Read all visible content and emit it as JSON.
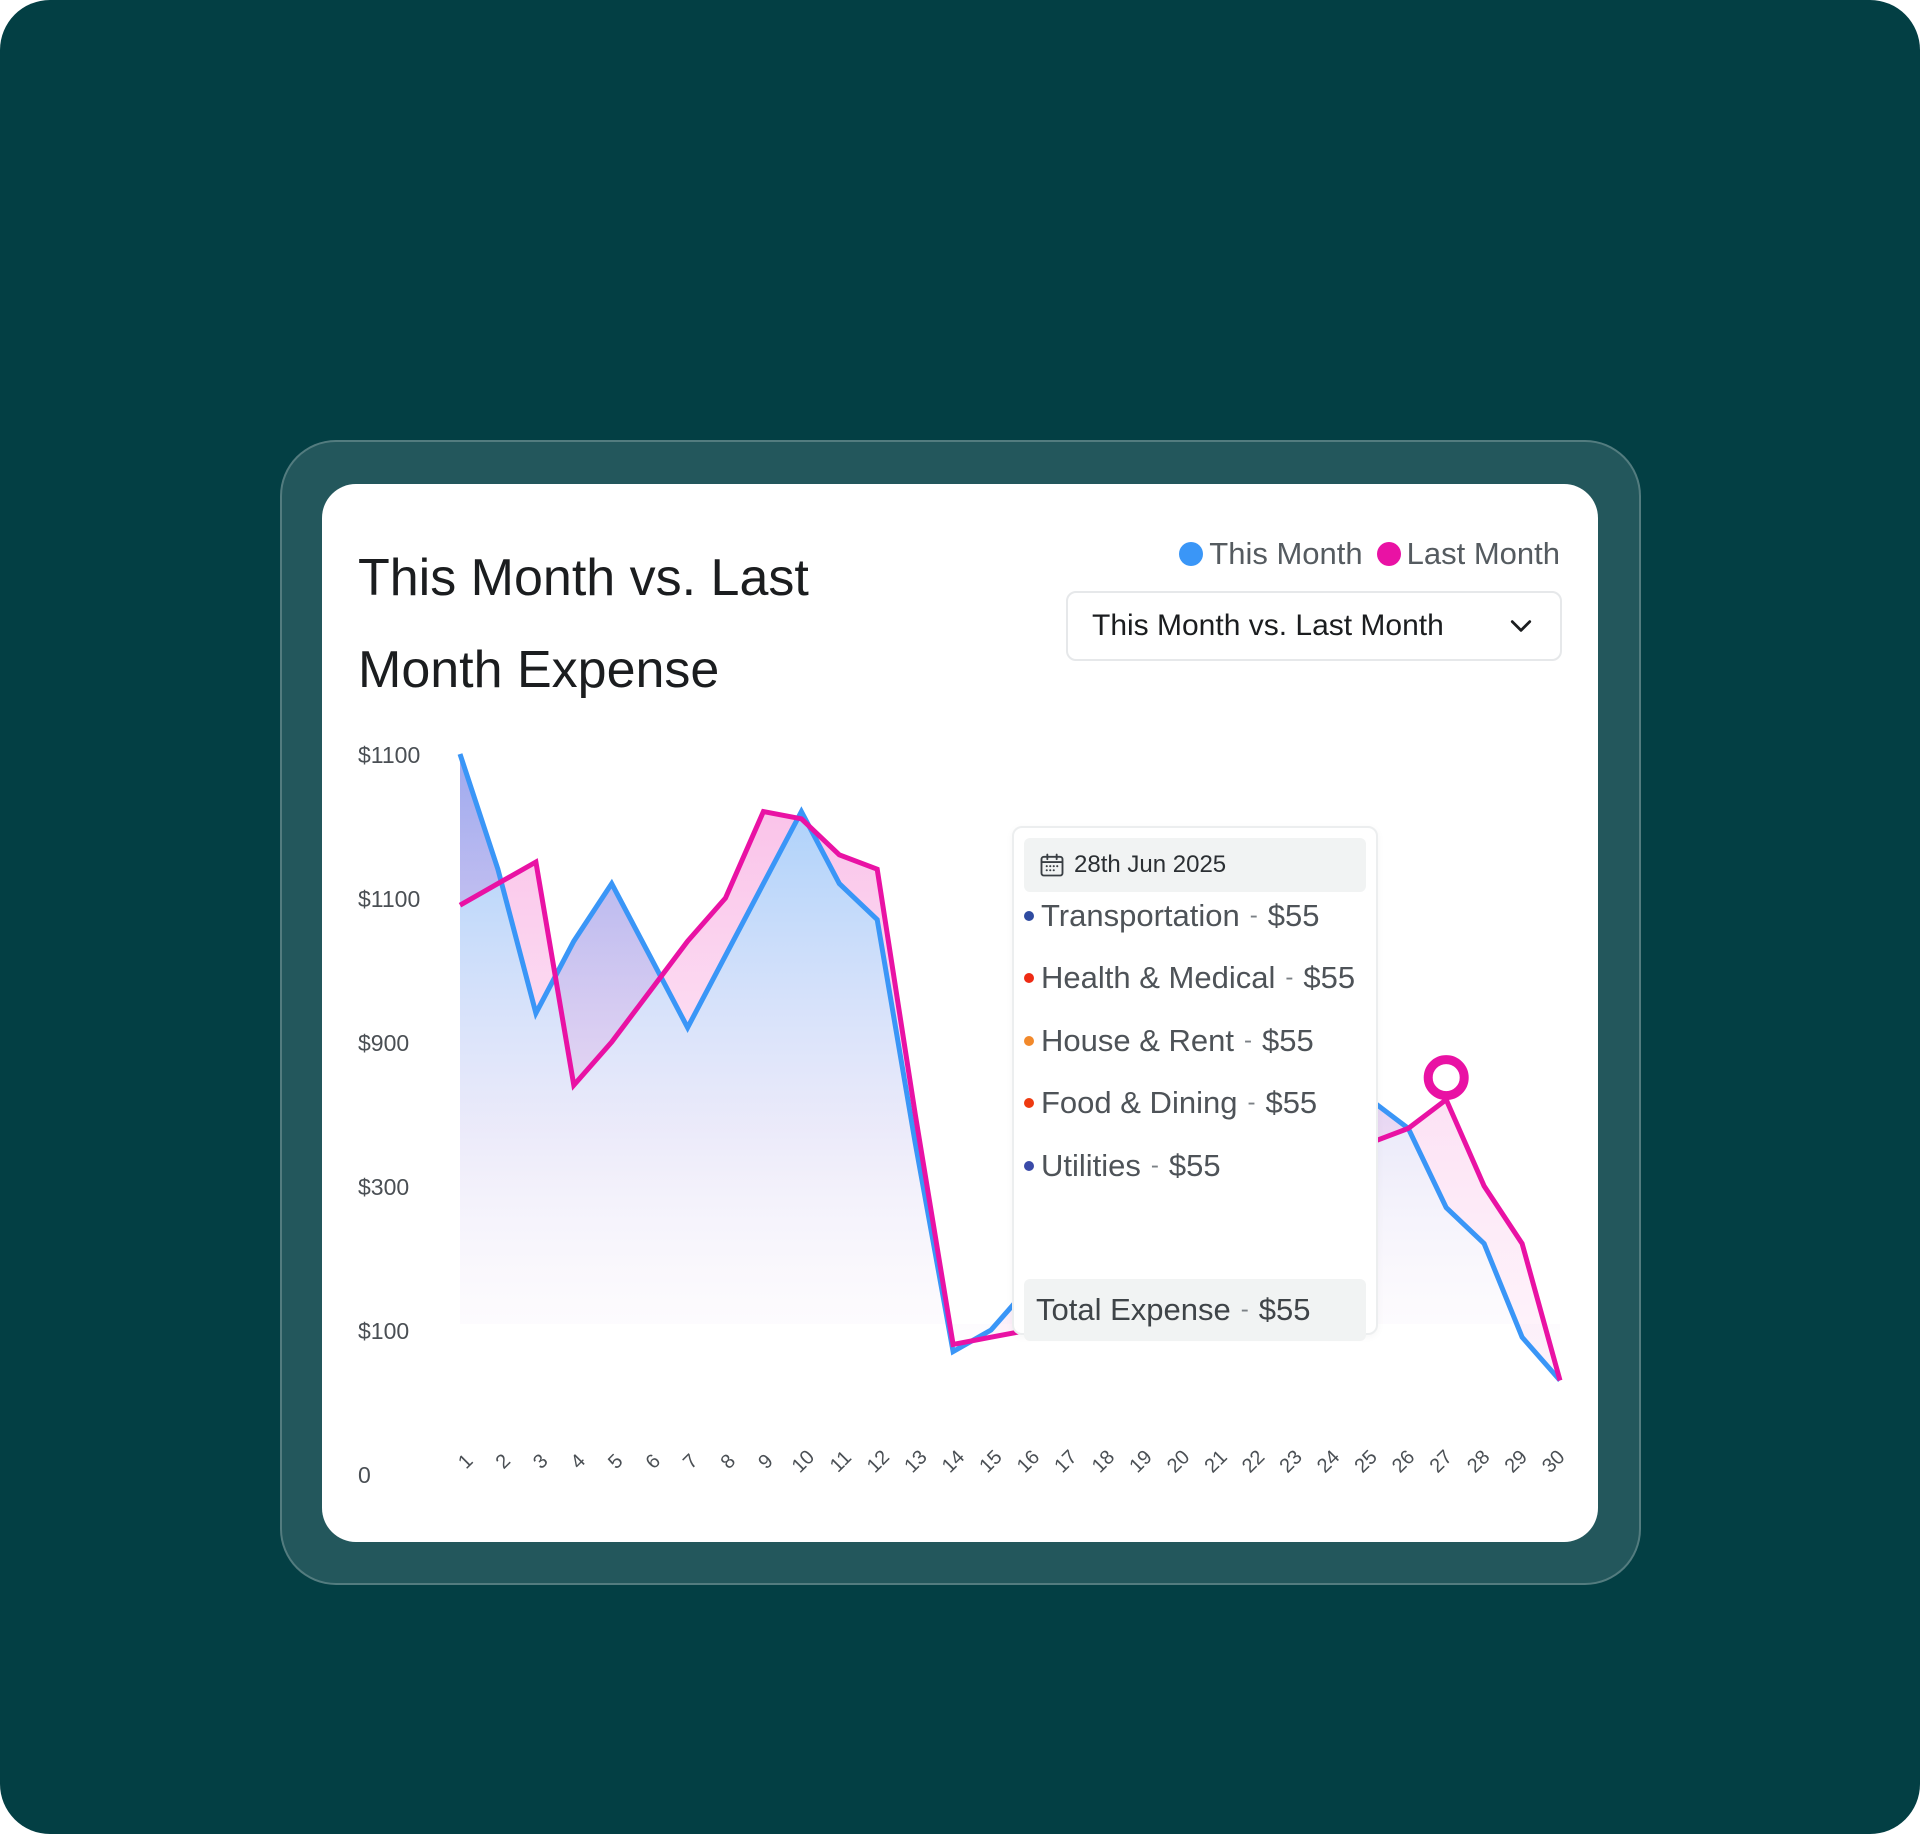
{
  "colors": {
    "background": "#033f44",
    "this_month": "#3a96f7",
    "last_month": "#e912a4"
  },
  "header": {
    "title": "This Month vs. Last Month  Expense"
  },
  "legend": [
    {
      "label": "This Month",
      "color": "#3a96f7"
    },
    {
      "label": "Last Month",
      "color": "#e912a4"
    }
  ],
  "dropdown": {
    "selected": "This Month vs. Last Month",
    "icon": "chevron-down-icon"
  },
  "tooltip": {
    "date": "28th Jun 2025",
    "icon": "calendar-icon",
    "items": [
      {
        "label": "Transportation",
        "value": "$55",
        "color": "#2f4ba0"
      },
      {
        "label": "Health & Medical",
        "value": "$55",
        "color": "#ee2b14"
      },
      {
        "label": "House  & Rent",
        "value": "$55",
        "color": "#f2892b"
      },
      {
        "label": "Food & Dining",
        "value": "$55",
        "color": "#ee3a10"
      },
      {
        "label": "Utilities",
        "value": "$55",
        "color": "#3a4aa8"
      }
    ],
    "separator": "-",
    "total_label": "Total Expense",
    "total_value": "$55"
  },
  "chart_data": {
    "type": "area",
    "title": "This Month vs. Last Month  Expense",
    "x": [
      1,
      2,
      3,
      4,
      5,
      6,
      7,
      8,
      9,
      10,
      11,
      12,
      13,
      14,
      15,
      16,
      17,
      18,
      19,
      20,
      21,
      22,
      23,
      24,
      25,
      26,
      27,
      28,
      29,
      30
    ],
    "y_tick_labels": [
      "$1100",
      "$1100",
      "$900",
      "$300",
      "$100",
      "0"
    ],
    "series": [
      {
        "name": "This Month",
        "color": "#3a96f7",
        "values": [
          5,
          4.2,
          3.2,
          3.7,
          4.1,
          3.6,
          3.1,
          3.6,
          4.1,
          4.6,
          4.1,
          3.85,
          2.3,
          0.85,
          1.0,
          1.3,
          2.2,
          2.6,
          2.6,
          2.6,
          2.6,
          2.6,
          2.6,
          2.6,
          2.6,
          2.4,
          1.85,
          1.6,
          0.95,
          0.65
        ]
      },
      {
        "name": "Last Month",
        "color": "#e912a4",
        "values": [
          3.95,
          4.1,
          4.25,
          2.7,
          3.0,
          3.35,
          3.7,
          4.0,
          4.6,
          4.55,
          4.3,
          4.2,
          2.5,
          0.9,
          0.95,
          1.0,
          1.1,
          2.0,
          2.3,
          2.3,
          2.3,
          2.3,
          2.3,
          2.3,
          2.3,
          2.4,
          2.6,
          2.0,
          1.6,
          0.65
        ]
      }
    ],
    "highlight": {
      "series": "Last Month",
      "x": 27
    },
    "ylim": [
      0,
      5
    ],
    "grid": false,
    "legend_position": "top-right"
  }
}
